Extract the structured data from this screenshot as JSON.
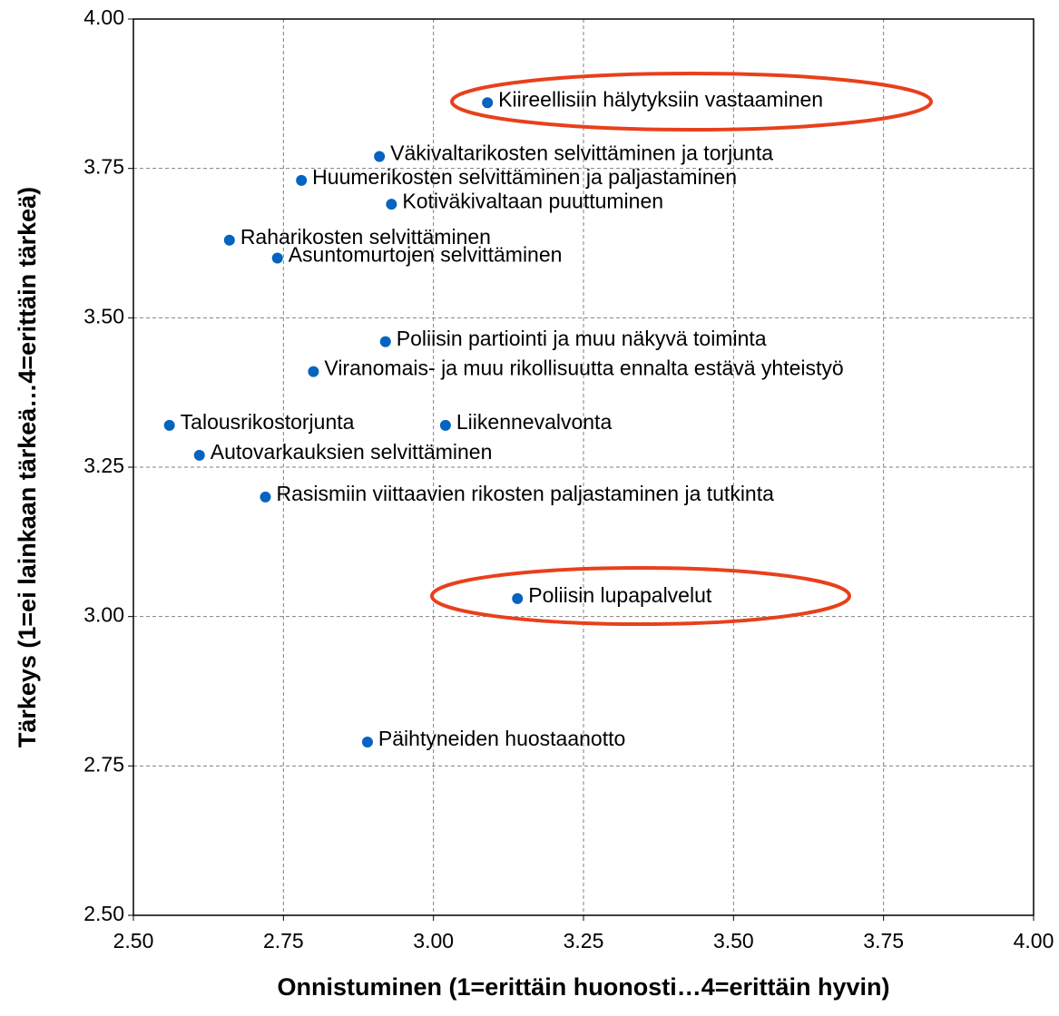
{
  "chart_data": {
    "type": "scatter",
    "xlabel": "Onnistuminen (1=erittäin huonosti…4=erittäin hyvin)",
    "ylabel": "Tärkeys (1=ei lainkaan tärkeä…4=erittäin tärkeä)",
    "color": "#0563c1",
    "grid": true,
    "xlim": [
      2.5,
      4.0
    ],
    "ylim": [
      2.5,
      4.0
    ],
    "xticks": [
      {
        "value": 2.5,
        "label": "2.50"
      },
      {
        "value": 2.75,
        "label": "2.75"
      },
      {
        "value": 3.0,
        "label": "3.00"
      },
      {
        "value": 3.25,
        "label": "3.25"
      },
      {
        "value": 3.5,
        "label": "3.50"
      },
      {
        "value": 3.75,
        "label": "3.75"
      },
      {
        "value": 4.0,
        "label": "4.00"
      }
    ],
    "yticks": [
      {
        "value": 2.5,
        "label": "2.50"
      },
      {
        "value": 2.75,
        "label": "2.75"
      },
      {
        "value": 3.0,
        "label": "3.00"
      },
      {
        "value": 3.25,
        "label": "3.25"
      },
      {
        "value": 3.5,
        "label": "3.50"
      },
      {
        "value": 3.75,
        "label": "3.75"
      },
      {
        "value": 4.0,
        "label": "4.00"
      }
    ],
    "labels": [
      "Kiireellisiin hälytyksiin vastaaminen",
      "Väkivaltarikosten selvittäminen ja torjunta",
      "Huumerikosten selvittäminen ja paljastaminen",
      "Kotiväkivaltaan puuttuminen",
      "Raharikosten selvittäminen",
      "Asuntomurtojen selvittäminen",
      "Poliisin partiointi ja muu näkyvä toiminta",
      "Viranomais- ja muu rikollisuutta ennalta estävä yhteistyö",
      "Talousrikostorjunta",
      "Liikennevalvonta",
      "Autovarkauksien selvittäminen",
      "Rasismiin viittaavien rikosten paljastaminen ja tutkinta",
      "Poliisin lupapalvelut",
      "Päihtyneiden huostaanotto"
    ],
    "x": [
      3.09,
      2.91,
      2.78,
      2.93,
      2.66,
      2.74,
      2.92,
      2.8,
      2.56,
      3.02,
      2.61,
      2.72,
      3.14,
      2.89
    ],
    "values": [
      3.86,
      3.77,
      3.73,
      3.69,
      3.63,
      3.6,
      3.46,
      3.41,
      3.32,
      3.32,
      3.27,
      3.2,
      3.03,
      2.79
    ]
  }
}
